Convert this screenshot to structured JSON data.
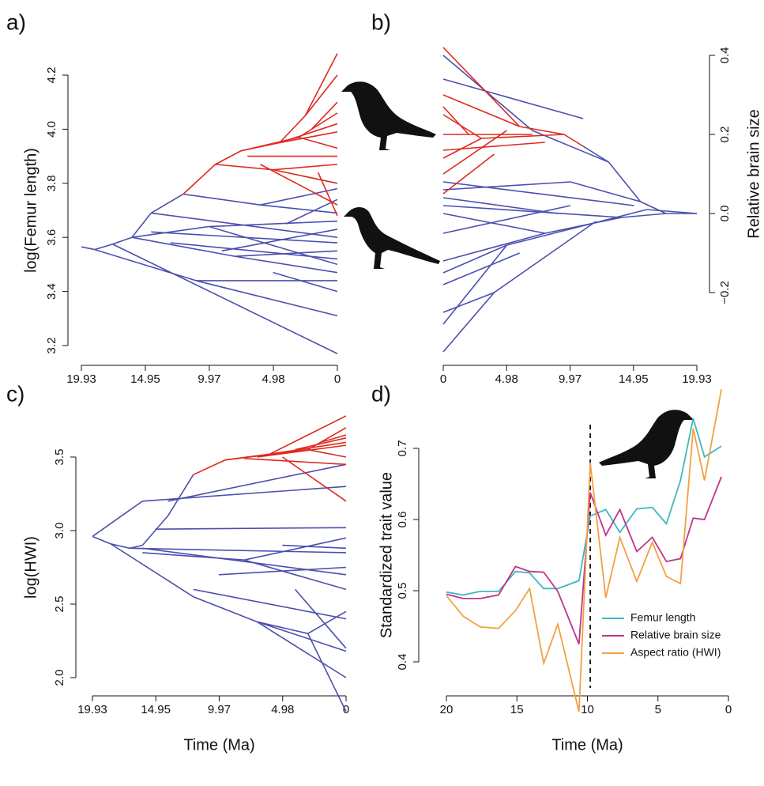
{
  "chart_data": [
    {
      "type": "phenogram",
      "label": "a)",
      "ylabel": "log(Femur length)",
      "yaxis": "left",
      "xlim": [
        19.93,
        0
      ],
      "xticks": [
        19.93,
        14.95,
        9.97,
        4.98,
        0
      ],
      "ylim": [
        3.2,
        4.2
      ],
      "yticks": [
        3.2,
        3.4,
        3.6,
        3.8,
        {
          "value": 4,
          "label": "4.0"
        },
        4.2
      ],
      "branches": [
        {
          "color": "#4b4fae",
          "segments": [
            [
              19.93,
              3.565,
              18.9,
              3.555
            ],
            [
              18.9,
              3.555,
              17.5,
              3.575
            ],
            [
              17.5,
              3.575,
              16,
              3.6
            ],
            [
              16,
              3.6,
              14.5,
              3.69
            ],
            [
              14.5,
              3.69,
              12,
              3.76
            ],
            [
              17.5,
              3.575,
              0,
              3.17
            ],
            [
              18.9,
              3.555,
              11,
              3.44
            ],
            [
              11,
              3.44,
              0,
              3.44
            ],
            [
              11,
              3.44,
              0,
              3.31
            ],
            [
              16,
              3.6,
              8,
              3.53
            ],
            [
              8,
              3.53,
              0,
              3.47
            ],
            [
              8,
              3.53,
              0,
              3.55
            ],
            [
              14.5,
              3.69,
              0,
              3.6
            ],
            [
              12,
              3.76,
              6,
              3.72
            ],
            [
              6,
              3.72,
              0,
              3.78
            ],
            [
              6,
              3.72,
              0,
              3.69
            ],
            [
              16,
              3.6,
              10,
              3.64
            ],
            [
              10,
              3.64,
              0,
              3.66
            ],
            [
              10,
              3.64,
              0,
              3.5
            ],
            [
              14.5,
              3.62,
              0,
              3.58
            ],
            [
              13,
              3.58,
              0,
              3.52
            ],
            [
              9,
              3.55,
              0,
              3.63
            ],
            [
              5,
              3.47,
              0,
              3.4
            ],
            [
              4,
              3.65,
              0,
              3.74
            ]
          ]
        },
        {
          "color": "#e0291f",
          "segments": [
            [
              12,
              3.76,
              9.5,
              3.87
            ],
            [
              9.5,
              3.87,
              7.5,
              3.92
            ],
            [
              7.5,
              3.92,
              4.5,
              3.95
            ],
            [
              4.5,
              3.95,
              2.5,
              4.05
            ],
            [
              2.5,
              4.05,
              0,
              4.28
            ],
            [
              2.5,
              4.05,
              0,
              4.2
            ],
            [
              4.5,
              3.95,
              0,
              3.99
            ],
            [
              7.5,
              3.92,
              3,
              3.97
            ],
            [
              3,
              3.97,
              0,
              4.06
            ],
            [
              3,
              3.97,
              0,
              3.93
            ],
            [
              9.5,
              3.87,
              5,
              3.85
            ],
            [
              5,
              3.85,
              0,
              3.87
            ],
            [
              5,
              3.85,
              0,
              3.8
            ],
            [
              6,
              3.87,
              0,
              3.72
            ],
            [
              4.5,
              3.95,
              0,
              4.02
            ],
            [
              7,
              3.9,
              0,
              3.9
            ],
            [
              2,
              4.0,
              0,
              4.1
            ],
            [
              1.5,
              3.84,
              0,
              3.68
            ]
          ]
        }
      ]
    },
    {
      "type": "phenogram",
      "label": "b)",
      "ylabel": "Relative brain size",
      "yaxis": "right",
      "xlim": [
        0,
        19.93
      ],
      "xticks": [
        0,
        4.98,
        9.97,
        14.95,
        19.93
      ],
      "ylim": [
        -0.2,
        0.4
      ],
      "yticks": [
        {
          "value": -0.2,
          "label": "−0.2"
        },
        {
          "value": 0,
          "label": "0.0"
        },
        0.2,
        0.4
      ],
      "branches": [
        {
          "color": "#4b4fae",
          "segments": [
            [
              19.93,
              0,
              17.5,
              0
            ],
            [
              17.5,
              0,
              15.5,
              0.03
            ],
            [
              15.5,
              0.03,
              13,
              0.13
            ],
            [
              13,
              0.13,
              11,
              0.17
            ],
            [
              13,
              0.13,
              7,
              0.21
            ],
            [
              7,
              0.21,
              0,
              0.4
            ],
            [
              11,
              0.24,
              0,
              0.34
            ],
            [
              15.5,
              0.03,
              10,
              0.08
            ],
            [
              10,
              0.08,
              0,
              0.06
            ],
            [
              17.5,
              0,
              14,
              -0.01
            ],
            [
              14,
              -0.01,
              8,
              -0.05
            ],
            [
              8,
              -0.05,
              0,
              -0.12
            ],
            [
              8,
              -0.05,
              0,
              0.0
            ],
            [
              14,
              -0.01,
              0,
              0.02
            ],
            [
              19.93,
              0,
              16,
              0.01
            ],
            [
              16,
              0.01,
              5,
              -0.08
            ],
            [
              5,
              -0.08,
              0,
              -0.28
            ],
            [
              5,
              -0.08,
              0,
              -0.15
            ],
            [
              12,
              -0.02,
              4,
              -0.2
            ],
            [
              4,
              -0.2,
              0,
              -0.35
            ],
            [
              4,
              -0.2,
              0,
              -0.25
            ],
            [
              10,
              0.02,
              0,
              -0.05
            ],
            [
              6,
              -0.1,
              0,
              -0.18
            ],
            [
              9,
              0.0,
              0,
              0.04
            ],
            [
              15,
              0.02,
              0,
              0.08
            ]
          ]
        },
        {
          "color": "#e0291f",
          "segments": [
            [
              11,
              0.17,
              9.5,
              0.2
            ],
            [
              9.5,
              0.2,
              6,
              0.22
            ],
            [
              6,
              0.22,
              0,
              0.42
            ],
            [
              6,
              0.22,
              0,
              0.3
            ],
            [
              9.5,
              0.2,
              3,
              0.19
            ],
            [
              3,
              0.19,
              0,
              0.25
            ],
            [
              3,
              0.19,
              0,
              0.14
            ],
            [
              7,
              0.2,
              0,
              0.2
            ],
            [
              5,
              0.21,
              0,
              0.1
            ],
            [
              4,
              0.15,
              0,
              0.05
            ],
            [
              2,
              0.2,
              0,
              0.27
            ],
            [
              8,
              0.18,
              0,
              0.16
            ]
          ]
        }
      ]
    },
    {
      "type": "phenogram",
      "label": "c)",
      "ylabel": "log(HWI)",
      "xlabel": "Time (Ma)",
      "yaxis": "left",
      "xlim": [
        19.93,
        0
      ],
      "xticks": [
        19.93,
        14.95,
        9.97,
        4.98,
        0
      ],
      "ylim": [
        2.0,
        3.5
      ],
      "yticks": [
        {
          "value": 2,
          "label": "2.0"
        },
        2.5,
        {
          "value": 3,
          "label": "3.0"
        },
        3.5
      ],
      "branches": [
        {
          "color": "#4b4fae",
          "segments": [
            [
              19.93,
              2.96,
              18.5,
              2.91
            ],
            [
              18.5,
              2.91,
              17,
              2.88
            ],
            [
              17,
              2.88,
              16,
              2.9
            ],
            [
              16,
              2.9,
              14,
              3.1
            ],
            [
              14,
              3.1,
              12,
              3.38
            ],
            [
              19.93,
              2.96,
              16,
              3.2
            ],
            [
              16,
              3.2,
              0,
              3.3
            ],
            [
              15,
              3.01,
              0,
              3.02
            ],
            [
              17,
              2.88,
              0,
              2.85
            ],
            [
              16,
              2.88,
              0,
              2.7
            ],
            [
              16,
              2.85,
              8,
              2.8
            ],
            [
              8,
              2.8,
              0,
              2.95
            ],
            [
              8,
              2.8,
              0,
              2.6
            ],
            [
              18.5,
              2.91,
              12,
              2.55
            ],
            [
              12,
              2.55,
              7,
              2.38
            ],
            [
              7,
              2.38,
              0,
              2.0
            ],
            [
              7,
              2.38,
              0,
              2.18
            ],
            [
              7,
              2.38,
              3,
              2.3
            ],
            [
              3,
              2.3,
              0,
              1.77
            ],
            [
              3,
              2.3,
              0,
              2.45
            ],
            [
              12,
              2.6,
              0,
              2.4
            ],
            [
              10,
              2.7,
              0,
              2.75
            ],
            [
              14,
              3.2,
              0,
              3.45
            ],
            [
              5,
              2.9,
              0,
              2.88
            ],
            [
              4,
              2.6,
              0,
              2.2
            ]
          ]
        },
        {
          "color": "#e0291f",
          "segments": [
            [
              12,
              3.38,
              9.5,
              3.48
            ],
            [
              9.5,
              3.48,
              6,
              3.52
            ],
            [
              6,
              3.52,
              0,
              3.78
            ],
            [
              6,
              3.52,
              0,
              3.6
            ],
            [
              9.5,
              3.48,
              3,
              3.55
            ],
            [
              3,
              3.55,
              0,
              3.7
            ],
            [
              3,
              3.55,
              0,
              3.5
            ],
            [
              7,
              3.5,
              0,
              3.58
            ],
            [
              5,
              3.5,
              0,
              3.2
            ],
            [
              4,
              3.55,
              0,
              3.63
            ],
            [
              2,
              3.6,
              0,
              3.65
            ],
            [
              8,
              3.49,
              0,
              3.45
            ]
          ]
        }
      ]
    },
    {
      "type": "line",
      "label": "d)",
      "ylabel": "Standardized trait value",
      "xlabel": "Time (Ma)",
      "yaxis": "left",
      "xlim": [
        20,
        0
      ],
      "xticks": [
        20,
        15,
        10,
        5,
        0
      ],
      "ylim": [
        0.4,
        0.7
      ],
      "yticks": [
        0.4,
        0.5,
        0.6,
        0.7
      ],
      "vline": 9.8,
      "x": [
        20,
        18.8,
        17.6,
        16.3,
        15.1,
        14.1,
        13.1,
        12.1,
        10.6,
        9.8,
        8.7,
        7.7,
        6.5,
        5.4,
        4.4,
        3.4,
        2.5,
        1.7,
        0.5
      ],
      "series": [
        {
          "name": "Femur length",
          "color": "#3fb8c0",
          "values": [
            0.498,
            0.494,
            0.499,
            0.499,
            0.527,
            0.525,
            0.503,
            0.503,
            0.514,
            0.605,
            0.614,
            0.582,
            0.615,
            0.617,
            0.594,
            0.655,
            0.742,
            0.688,
            0.703
          ]
        },
        {
          "name": "Relative brain size",
          "color": "#c0338f",
          "values": [
            0.495,
            0.489,
            0.489,
            0.494,
            0.534,
            0.527,
            0.526,
            0.499,
            0.425,
            0.638,
            0.578,
            0.614,
            0.555,
            0.575,
            0.541,
            0.545,
            0.602,
            0.6,
            0.66
          ]
        },
        {
          "name": "Aspect ratio (HWI)",
          "color": "#f4a041",
          "values": [
            0.493,
            0.464,
            0.449,
            0.447,
            0.472,
            0.503,
            0.398,
            0.453,
            0.33,
            0.68,
            0.49,
            0.575,
            0.513,
            0.568,
            0.52,
            0.51,
            0.728,
            0.655,
            0.783
          ]
        }
      ]
    }
  ]
}
